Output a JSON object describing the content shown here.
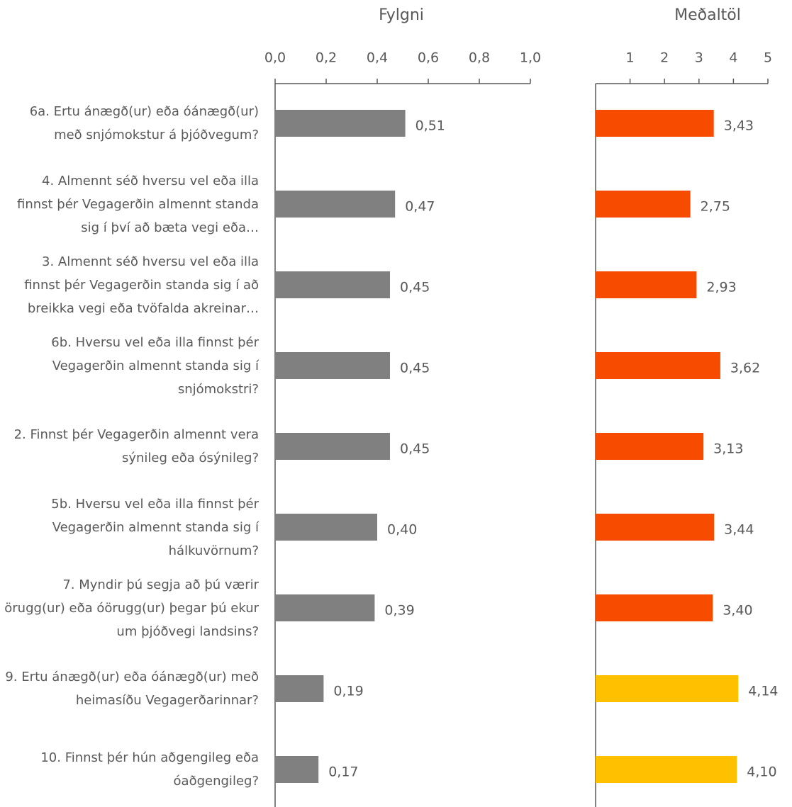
{
  "chart_data": [
    {
      "type": "barh",
      "title": "Fylgni",
      "categories": [
        "6a. Ertu ánægð(ur) eða óánægð(ur) með snjómokstur á þjóðvegum?",
        "4. Almennt séð hversu vel eða illa finnst þér Vegagerðin almennt standa sig í því að bæta vegi eða…",
        "3. Almennt séð hversu vel eða illa finnst þér Vegagerðin standa sig í að breikka vegi eða tvöfalda akreinar…",
        "6b. Hversu vel eða illa finnst þér Vegagerðin almennt standa sig í snjómokstri?",
        "2. Finnst þér Vegagerðin almennt vera sýnileg eða ósýnileg?",
        "5b. Hversu vel eða illa finnst þér Vegagerðin almennt standa sig í hálkuvörnum?",
        "7. Myndir þú segja að þú værir örugg(ur) eða óörugg(ur) þegar þú ekur um þjóðvegi landsins?",
        "9. Ertu ánægð(ur) eða óánægð(ur) með heimasíðu Vegagerðarinnar?",
        "10. Finnst þér hún aðgengileg eða óaðgengileg?"
      ],
      "values": [
        0.51,
        0.47,
        0.45,
        0.45,
        0.45,
        0.4,
        0.39,
        0.19,
        0.17
      ],
      "value_labels": [
        "0,51",
        "0,47",
        "0,45",
        "0,45",
        "0,45",
        "0,40",
        "0,39",
        "0,19",
        "0,17"
      ],
      "color": "#808080",
      "xlim": [
        0,
        1
      ],
      "xticks": [
        {
          "value": 0,
          "label": "0,0"
        },
        {
          "value": 0.2,
          "label": "0,2"
        },
        {
          "value": 0.4,
          "label": "0,4"
        },
        {
          "value": 0.6,
          "label": "0,6"
        },
        {
          "value": 0.8,
          "label": "0,8"
        },
        {
          "value": 1,
          "label": "1,0"
        }
      ]
    },
    {
      "type": "barh",
      "title": "Meðaltöl",
      "values": [
        3.43,
        2.75,
        2.93,
        3.62,
        3.13,
        3.44,
        3.4,
        4.14,
        4.1
      ],
      "value_labels": [
        "3,43",
        "2,75",
        "2,93",
        "3,62",
        "3,13",
        "3,44",
        "3,40",
        "4,14",
        "4,10"
      ],
      "colors": [
        "#f74c00",
        "#f74c00",
        "#f74c00",
        "#f74c00",
        "#f74c00",
        "#f74c00",
        "#f74c00",
        "#ffc000",
        "#ffc000"
      ],
      "xlim": [
        0,
        5
      ],
      "xticks": [
        1,
        2,
        3,
        4,
        5
      ]
    }
  ]
}
